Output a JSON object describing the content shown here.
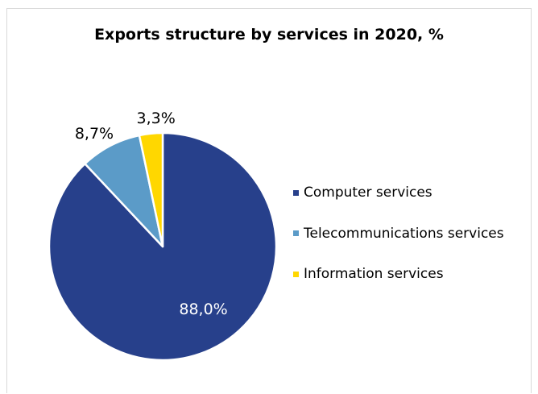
{
  "chart_data": {
    "type": "pie",
    "title": "Exports structure by services in 2020, %",
    "slices": [
      {
        "name": "Computer services",
        "value": 88.0,
        "label": "88,0%",
        "color": "#27408b"
      },
      {
        "name": "Telecommunications services",
        "value": 8.7,
        "label": "8,7%",
        "color": "#5b9bc8"
      },
      {
        "name": "Information services",
        "value": 3.3,
        "label": "3,3%",
        "color": "#ffd700"
      }
    ],
    "legend_position": "right"
  }
}
